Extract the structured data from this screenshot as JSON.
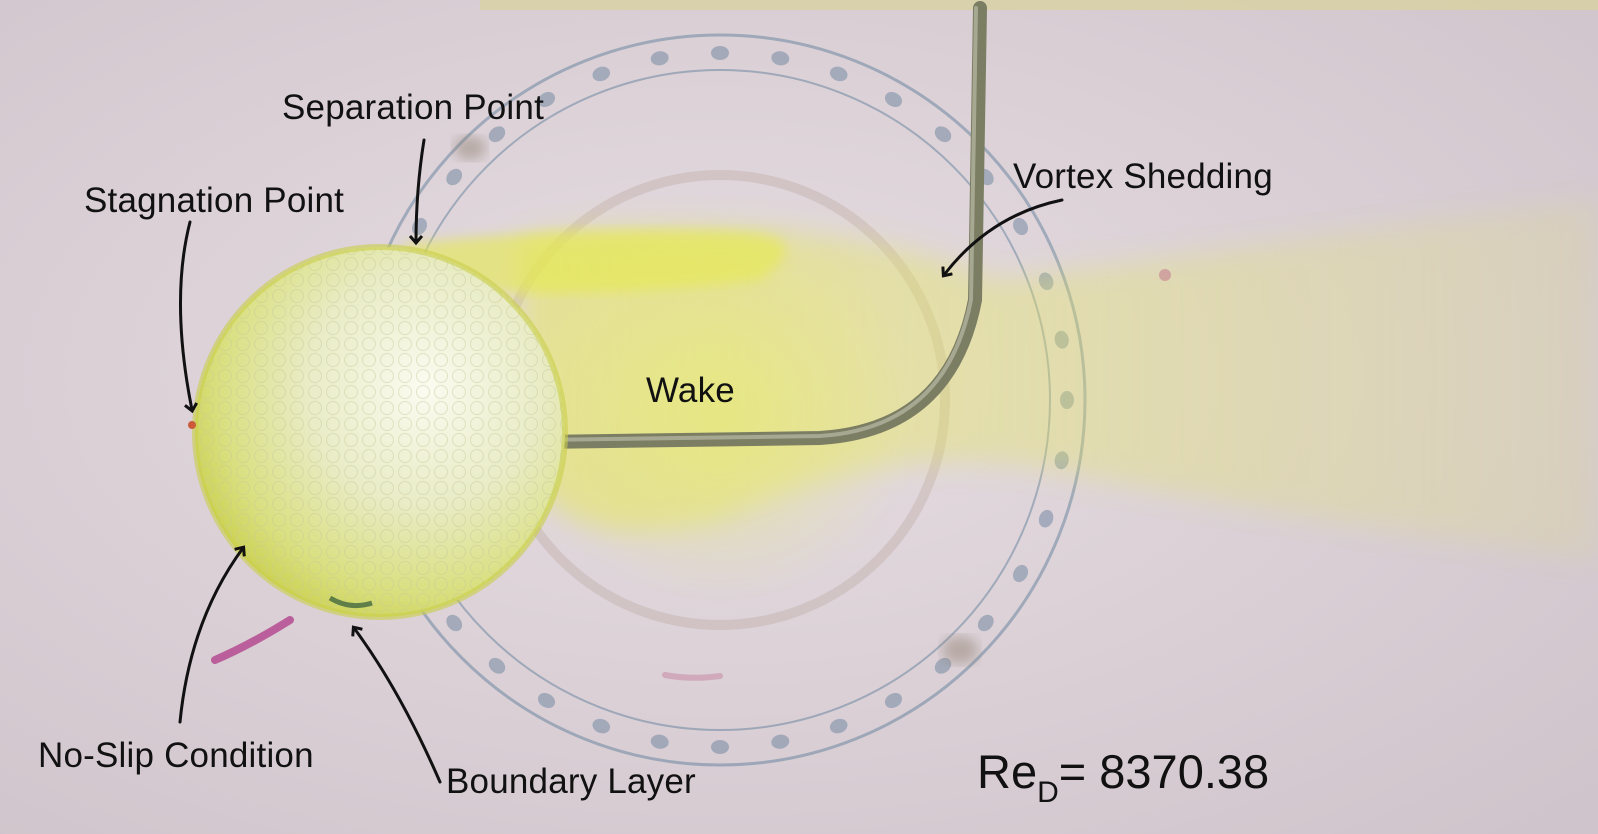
{
  "labels": {
    "separation_point": "Separation Point",
    "stagnation_point": "Stagnation Point",
    "vortex_shedding": "Vortex Shedding",
    "wake": "Wake",
    "no_slip_condition": "No-Slip Condition",
    "boundary_layer": "Boundary Layer"
  },
  "reynolds": {
    "symbol": "Re",
    "subscript": "D",
    "equals": "= ",
    "value": "8370.38"
  },
  "colors": {
    "background": "#ddd3d9",
    "dye": "#e4ea3c",
    "ball": "#eef0c8",
    "rod": "#7c7e63",
    "protractor": "#5f7a96",
    "text": "#111111"
  }
}
